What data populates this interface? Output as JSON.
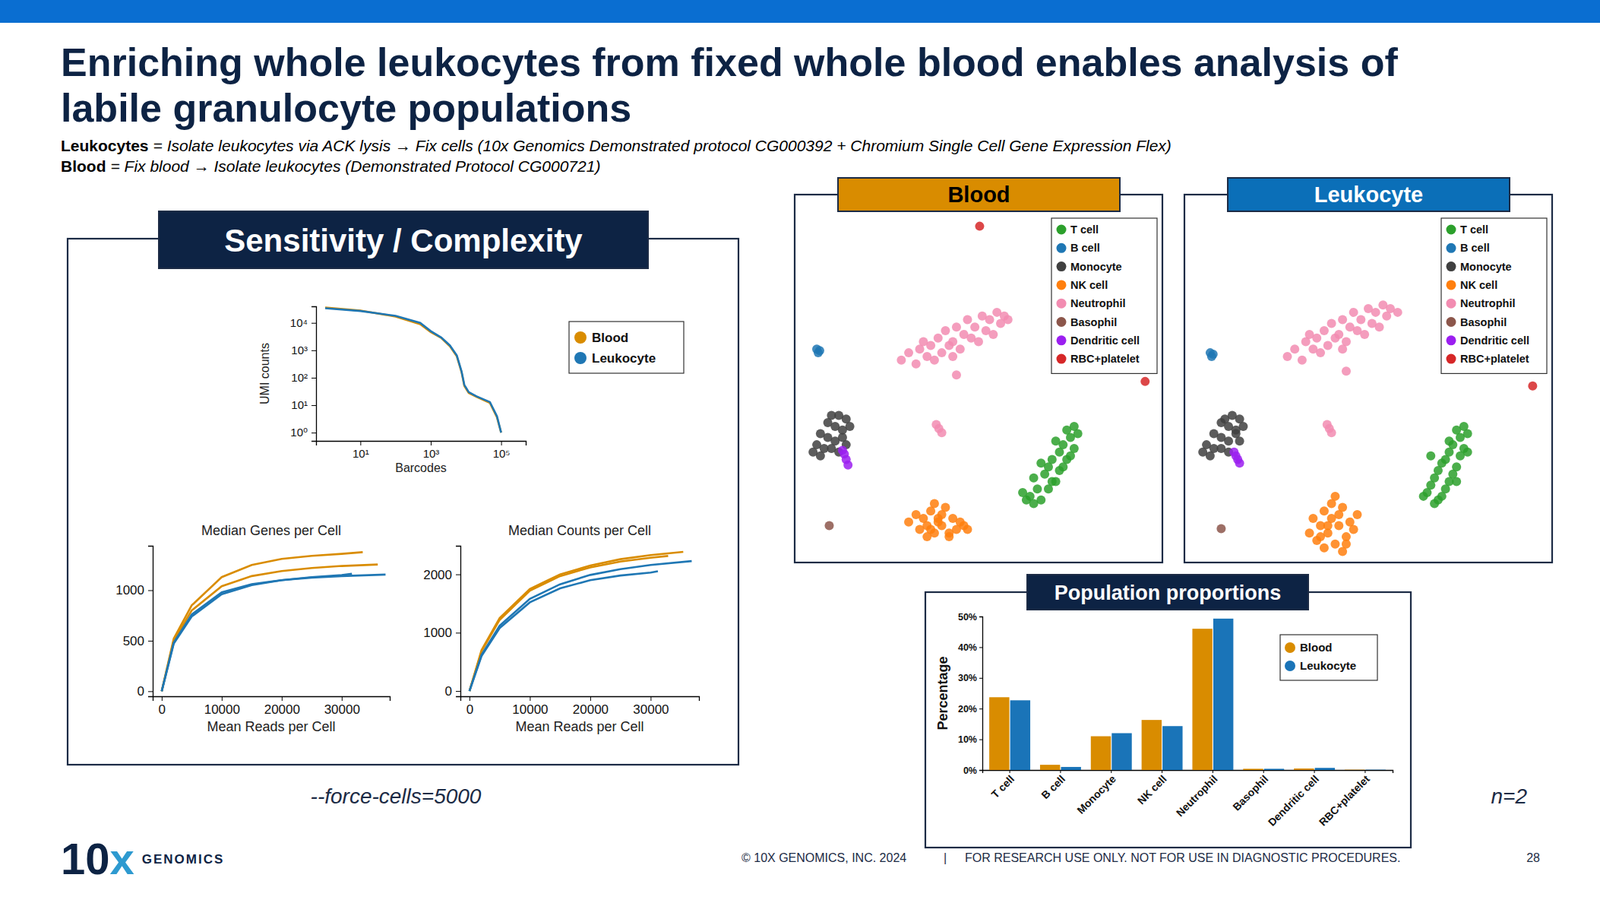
{
  "slide": {
    "title": [
      "Enriching whole leukocytes from fixed whole blood enables analysis of",
      "labile granulocyte populations"
    ],
    "definitions": [
      {
        "term": "Leukocytes",
        "text": "= Isolate leukocytes via ACK lysis → Fix cells (10x Genomics Demonstrated protocol CG000392 + Chromium Single Cell Gene Expression Flex)"
      },
      {
        "term": "Blood",
        "text": "= Fix blood → Isolate leukocytes (Demonstrated Protocol CG000721)"
      }
    ],
    "panel_titles": {
      "sensitivity": "Sensitivity / Complexity",
      "proportions": "Population proportions"
    },
    "notes": {
      "force_cells": "--force-cells=5000",
      "n": "n=2"
    },
    "footer": {
      "copyright": "© 10X GENOMICS, INC. 2024",
      "separator": "|",
      "disclaimer": "FOR RESEARCH USE ONLY. NOT FOR USE IN DIAGNOSTIC PROCEDURES.",
      "page": "28"
    },
    "logo": {
      "mark": "10x",
      "word": "GENOMICS"
    }
  },
  "chart_data": [
    {
      "type": "line",
      "log": true,
      "x_label": "Barcodes",
      "y_label": "UMI counts",
      "legend": "right",
      "xlim": [
        0.55,
        500000
      ],
      "ylim": [
        0.5,
        40000
      ],
      "xticks": [
        {
          "value": 10,
          "label": "10¹"
        },
        {
          "value": 1000,
          "label": "10³"
        },
        {
          "value": 100000,
          "label": "10⁵"
        }
      ],
      "yticks": [
        {
          "value": 1,
          "label": "10⁰"
        },
        {
          "value": 10,
          "label": "10¹"
        },
        {
          "value": 100,
          "label": "10²"
        },
        {
          "value": 1000,
          "label": "10³"
        },
        {
          "value": 10000,
          "label": "10⁴"
        }
      ],
      "x": [
        1,
        10,
        100,
        500,
        1000,
        2000,
        3500,
        5500,
        7500,
        9000,
        12000,
        20000,
        48000,
        76000,
        100000
      ],
      "series": [
        {
          "name": "Blood",
          "color": "#d98c00",
          "values": [
            36000,
            28000,
            17000,
            9000,
            4600,
            2800,
            1400,
            600,
            160,
            50,
            28,
            20,
            12,
            3.6,
            1
          ]
        },
        {
          "name": "Leukocyte",
          "color": "#1f77b4",
          "values": [
            34000,
            27000,
            18000,
            10000,
            5000,
            2900,
            1500,
            650,
            170,
            55,
            30,
            21,
            13,
            4,
            1
          ]
        }
      ]
    },
    {
      "type": "line",
      "title": "Median Genes per Cell",
      "x_label": "Mean Reads per Cell",
      "xlim": [
        -1500,
        38000
      ],
      "ylim": [
        -50,
        1440
      ],
      "xticks": [
        0,
        10000,
        20000,
        30000
      ],
      "yticks": [
        0,
        500,
        1000
      ],
      "series": [
        {
          "color": "#d98c00",
          "x": [
            0,
            2000,
            5000,
            10000,
            15000,
            20000,
            25000,
            30000,
            33500
          ],
          "values": [
            0,
            520,
            850,
            1130,
            1250,
            1310,
            1340,
            1360,
            1377
          ]
        },
        {
          "color": "#d98c00",
          "x": [
            0,
            2000,
            5000,
            10000,
            15000,
            20000,
            25000,
            30000,
            36000
          ],
          "values": [
            0,
            500,
            800,
            1040,
            1140,
            1190,
            1220,
            1240,
            1255
          ]
        },
        {
          "color": "#1f77b4",
          "x": [
            0,
            2000,
            5000,
            10000,
            15000,
            20000,
            25000,
            30000,
            37300
          ],
          "values": [
            0,
            480,
            760,
            980,
            1060,
            1100,
            1125,
            1140,
            1155
          ]
        },
        {
          "color": "#1f77b4",
          "x": [
            0,
            2000,
            5000,
            10000,
            15000,
            20000,
            25000,
            30000,
            31700
          ],
          "values": [
            0,
            470,
            740,
            960,
            1050,
            1100,
            1130,
            1150,
            1163
          ]
        }
      ]
    },
    {
      "type": "line",
      "title": "Median Counts per Cell",
      "x_label": "Mean Reads per Cell",
      "xlim": [
        -1500,
        38000
      ],
      "ylim": [
        -90,
        2490
      ],
      "xticks": [
        0,
        10000,
        20000,
        30000
      ],
      "yticks": [
        0,
        1000,
        2000
      ],
      "series": [
        {
          "color": "#d98c00",
          "x": [
            0,
            2000,
            5000,
            10000,
            15000,
            20000,
            25000,
            30000,
            35400
          ],
          "values": [
            0,
            700,
            1250,
            1750,
            2000,
            2150,
            2260,
            2330,
            2386
          ]
        },
        {
          "color": "#d98c00",
          "x": [
            0,
            2000,
            5000,
            10000,
            15000,
            20000,
            25000,
            30000,
            32900
          ],
          "values": [
            0,
            680,
            1220,
            1720,
            1970,
            2120,
            2220,
            2285,
            2316
          ]
        },
        {
          "color": "#1f77b4",
          "x": [
            0,
            2000,
            5000,
            10000,
            15000,
            20000,
            25000,
            30000,
            36800
          ],
          "values": [
            0,
            620,
            1120,
            1580,
            1830,
            1990,
            2090,
            2160,
            2228
          ]
        },
        {
          "color": "#1f77b4",
          "x": [
            0,
            2000,
            5000,
            10000,
            15000,
            20000,
            25000,
            30000,
            31200
          ],
          "values": [
            0,
            600,
            1080,
            1520,
            1760,
            1900,
            1980,
            2030,
            2053
          ]
        }
      ]
    },
    {
      "type": "scatter",
      "title": "Blood",
      "tick_labels": false,
      "legend": "top-right",
      "xlim": [
        0,
        100
      ],
      "ylim": [
        0,
        100
      ],
      "series": [
        {
          "name": "T cell",
          "color": "#2ca02c",
          "x": [
            76,
            77,
            75,
            74,
            73,
            76,
            72,
            71,
            74,
            70,
            69,
            72,
            68,
            67,
            70,
            65,
            66,
            69,
            64,
            63,
            67,
            71,
            62,
            65,
            73,
            75
          ],
          "values": [
            37,
            35,
            34,
            36,
            32,
            31,
            30,
            33,
            28,
            28,
            26,
            25,
            24,
            27,
            22,
            23,
            20,
            20,
            18,
            17,
            17,
            22,
            19,
            16,
            26,
            29
          ]
        },
        {
          "name": "B cell",
          "color": "#1f77b4",
          "x": [
            6,
            6.8,
            6.4
          ],
          "values": [
            58,
            57.6,
            57
          ]
        },
        {
          "name": "Monocyte",
          "color": "#404040",
          "x": [
            10,
            12,
            14,
            15,
            9,
            11,
            13,
            7,
            9,
            11,
            13,
            6,
            8,
            10,
            12,
            5,
            7,
            14
          ],
          "values": [
            40,
            40,
            39,
            37,
            38,
            37,
            36,
            35,
            34,
            33,
            34,
            32,
            31,
            31,
            30,
            30,
            29,
            32
          ]
        },
        {
          "name": "NK cell",
          "color": "#ff7f0e",
          "x": [
            31,
            33,
            34,
            35,
            36,
            37,
            38,
            39,
            40,
            41,
            42,
            43,
            44,
            45,
            46,
            47,
            36,
            38,
            40,
            42,
            39,
            37
          ],
          "values": [
            11,
            13,
            9,
            12,
            10,
            14,
            8,
            12,
            10,
            15,
            8,
            12,
            9,
            11,
            10,
            9,
            7,
            16,
            13,
            7,
            11,
            9
          ]
        },
        {
          "name": "Neutrophil",
          "color": "#f28cb1",
          "x": [
            29,
            31,
            33,
            34,
            36,
            37,
            38,
            39,
            40,
            41,
            42,
            43,
            44,
            45,
            46,
            47,
            48,
            49,
            50,
            51,
            52,
            53,
            54,
            55,
            56,
            57,
            58,
            35,
            43,
            44,
            38.5,
            39.2,
            40
          ],
          "values": [
            55,
            57,
            54,
            58,
            56,
            59,
            55,
            61,
            57,
            63,
            59,
            60,
            64,
            58,
            62,
            66,
            61,
            64,
            60,
            67,
            63,
            66,
            62,
            68,
            65,
            67,
            66,
            60,
            56,
            51,
            37.5,
            36.4,
            35.3
          ]
        },
        {
          "name": "Basophil",
          "color": "#8c564b",
          "x": [
            9.4
          ],
          "values": [
            10
          ]
        },
        {
          "name": "Dendritic cell",
          "color": "#9b1ff0",
          "x": [
            13.5,
            14,
            14.5,
            13
          ],
          "values": [
            29.5,
            28,
            26.5,
            30.5
          ]
        },
        {
          "name": "RBC+platelet",
          "color": "#d62728",
          "x": [
            50.3,
            95.3
          ],
          "values": [
            91.4,
            49.2
          ]
        }
      ]
    },
    {
      "type": "scatter",
      "title": "Leukocyte",
      "tick_labels": false,
      "legend": "top-right",
      "xlim": [
        0,
        100
      ],
      "ylim": [
        0,
        100
      ],
      "series": [
        {
          "name": "T cell",
          "color": "#2ca02c",
          "x": [
            76,
            77,
            75,
            74,
            76,
            73,
            72,
            75,
            71,
            74,
            70,
            73,
            69,
            72,
            68,
            71,
            67,
            70,
            66,
            69,
            65,
            68,
            67,
            72,
            74,
            77
          ],
          "values": [
            37,
            35,
            34,
            36,
            31,
            32,
            30,
            29,
            28,
            26,
            27,
            24,
            25,
            22,
            23,
            20,
            21,
            18,
            19,
            17,
            18,
            16,
            29,
            33,
            22,
            30
          ]
        },
        {
          "name": "B cell",
          "color": "#1f77b4",
          "x": [
            7,
            7.8,
            7.4
          ],
          "values": [
            57,
            56.6,
            56
          ]
        },
        {
          "name": "Monocyte",
          "color": "#404040",
          "x": [
            11,
            13,
            15,
            16,
            10,
            12,
            14,
            8,
            10,
            12,
            14,
            6,
            8,
            10,
            12,
            5,
            7,
            15
          ],
          "values": [
            39,
            40,
            39,
            37,
            38,
            37,
            36,
            35,
            34,
            33,
            35,
            32,
            31,
            31,
            30,
            30,
            29,
            33
          ]
        },
        {
          "name": "NK cell",
          "color": "#ff7f0e",
          "x": [
            34,
            35,
            36,
            37,
            38,
            39,
            40,
            41,
            42,
            43,
            44,
            45,
            46,
            47,
            38,
            40,
            42,
            44,
            41,
            39,
            43,
            37
          ],
          "values": [
            8,
            12,
            6,
            10,
            14,
            8,
            12,
            5,
            10,
            15,
            7,
            11,
            9,
            13,
            4,
            16,
            13,
            5,
            18,
            10,
            3,
            7
          ]
        },
        {
          "name": "Neutrophil",
          "color": "#f28cb1",
          "x": [
            28,
            30,
            32,
            33,
            35,
            36,
            37,
            38,
            39,
            40,
            41,
            42,
            43,
            44,
            45,
            46,
            47,
            48,
            49,
            50,
            51,
            52,
            53,
            54,
            55,
            56,
            58,
            34,
            43,
            44,
            38.8,
            39.4,
            40
          ],
          "values": [
            56,
            58,
            55,
            60,
            58,
            61,
            57,
            63,
            59,
            65,
            61,
            62,
            66,
            60,
            64,
            68,
            63,
            66,
            62,
            69,
            65,
            68,
            64,
            70,
            67,
            69,
            68,
            62,
            58,
            52,
            37.5,
            36.4,
            35.3
          ]
        },
        {
          "name": "Basophil",
          "color": "#8c564b",
          "x": [
            10
          ],
          "values": [
            9.2
          ]
        },
        {
          "name": "Dendritic cell",
          "color": "#9b1ff0",
          "x": [
            14,
            14.5,
            15,
            13.5
          ],
          "values": [
            29,
            28,
            27,
            30
          ]
        },
        {
          "name": "RBC+platelet",
          "color": "#d62728",
          "x": [
            94.7
          ],
          "values": [
            48
          ]
        }
      ]
    },
    {
      "type": "bar",
      "y_label": "Percentage",
      "legend": "top-right",
      "categories": [
        "T cell",
        "B cell",
        "Monocyte",
        "NK cell",
        "Neutrophil",
        "Basophil",
        "Dendritic cell",
        "RBC+platelet"
      ],
      "ylim": [
        0,
        50
      ],
      "yticks": [
        {
          "value": 0,
          "label": "0%"
        },
        {
          "value": 10,
          "label": "10%"
        },
        {
          "value": 20,
          "label": "20%"
        },
        {
          "value": 30,
          "label": "30%"
        },
        {
          "value": 40,
          "label": "40%"
        },
        {
          "value": 50,
          "label": "50%"
        }
      ],
      "series": [
        {
          "name": "Blood",
          "color": "#d98c00",
          "values": [
            23.7,
            1.7,
            11.0,
            16.3,
            46.0,
            0.4,
            0.5,
            0.1
          ]
        },
        {
          "name": "Leukocyte",
          "color": "#1a74b8",
          "values": [
            22.7,
            1.0,
            12.0,
            14.3,
            49.3,
            0.4,
            0.7,
            0.1
          ]
        }
      ]
    }
  ]
}
